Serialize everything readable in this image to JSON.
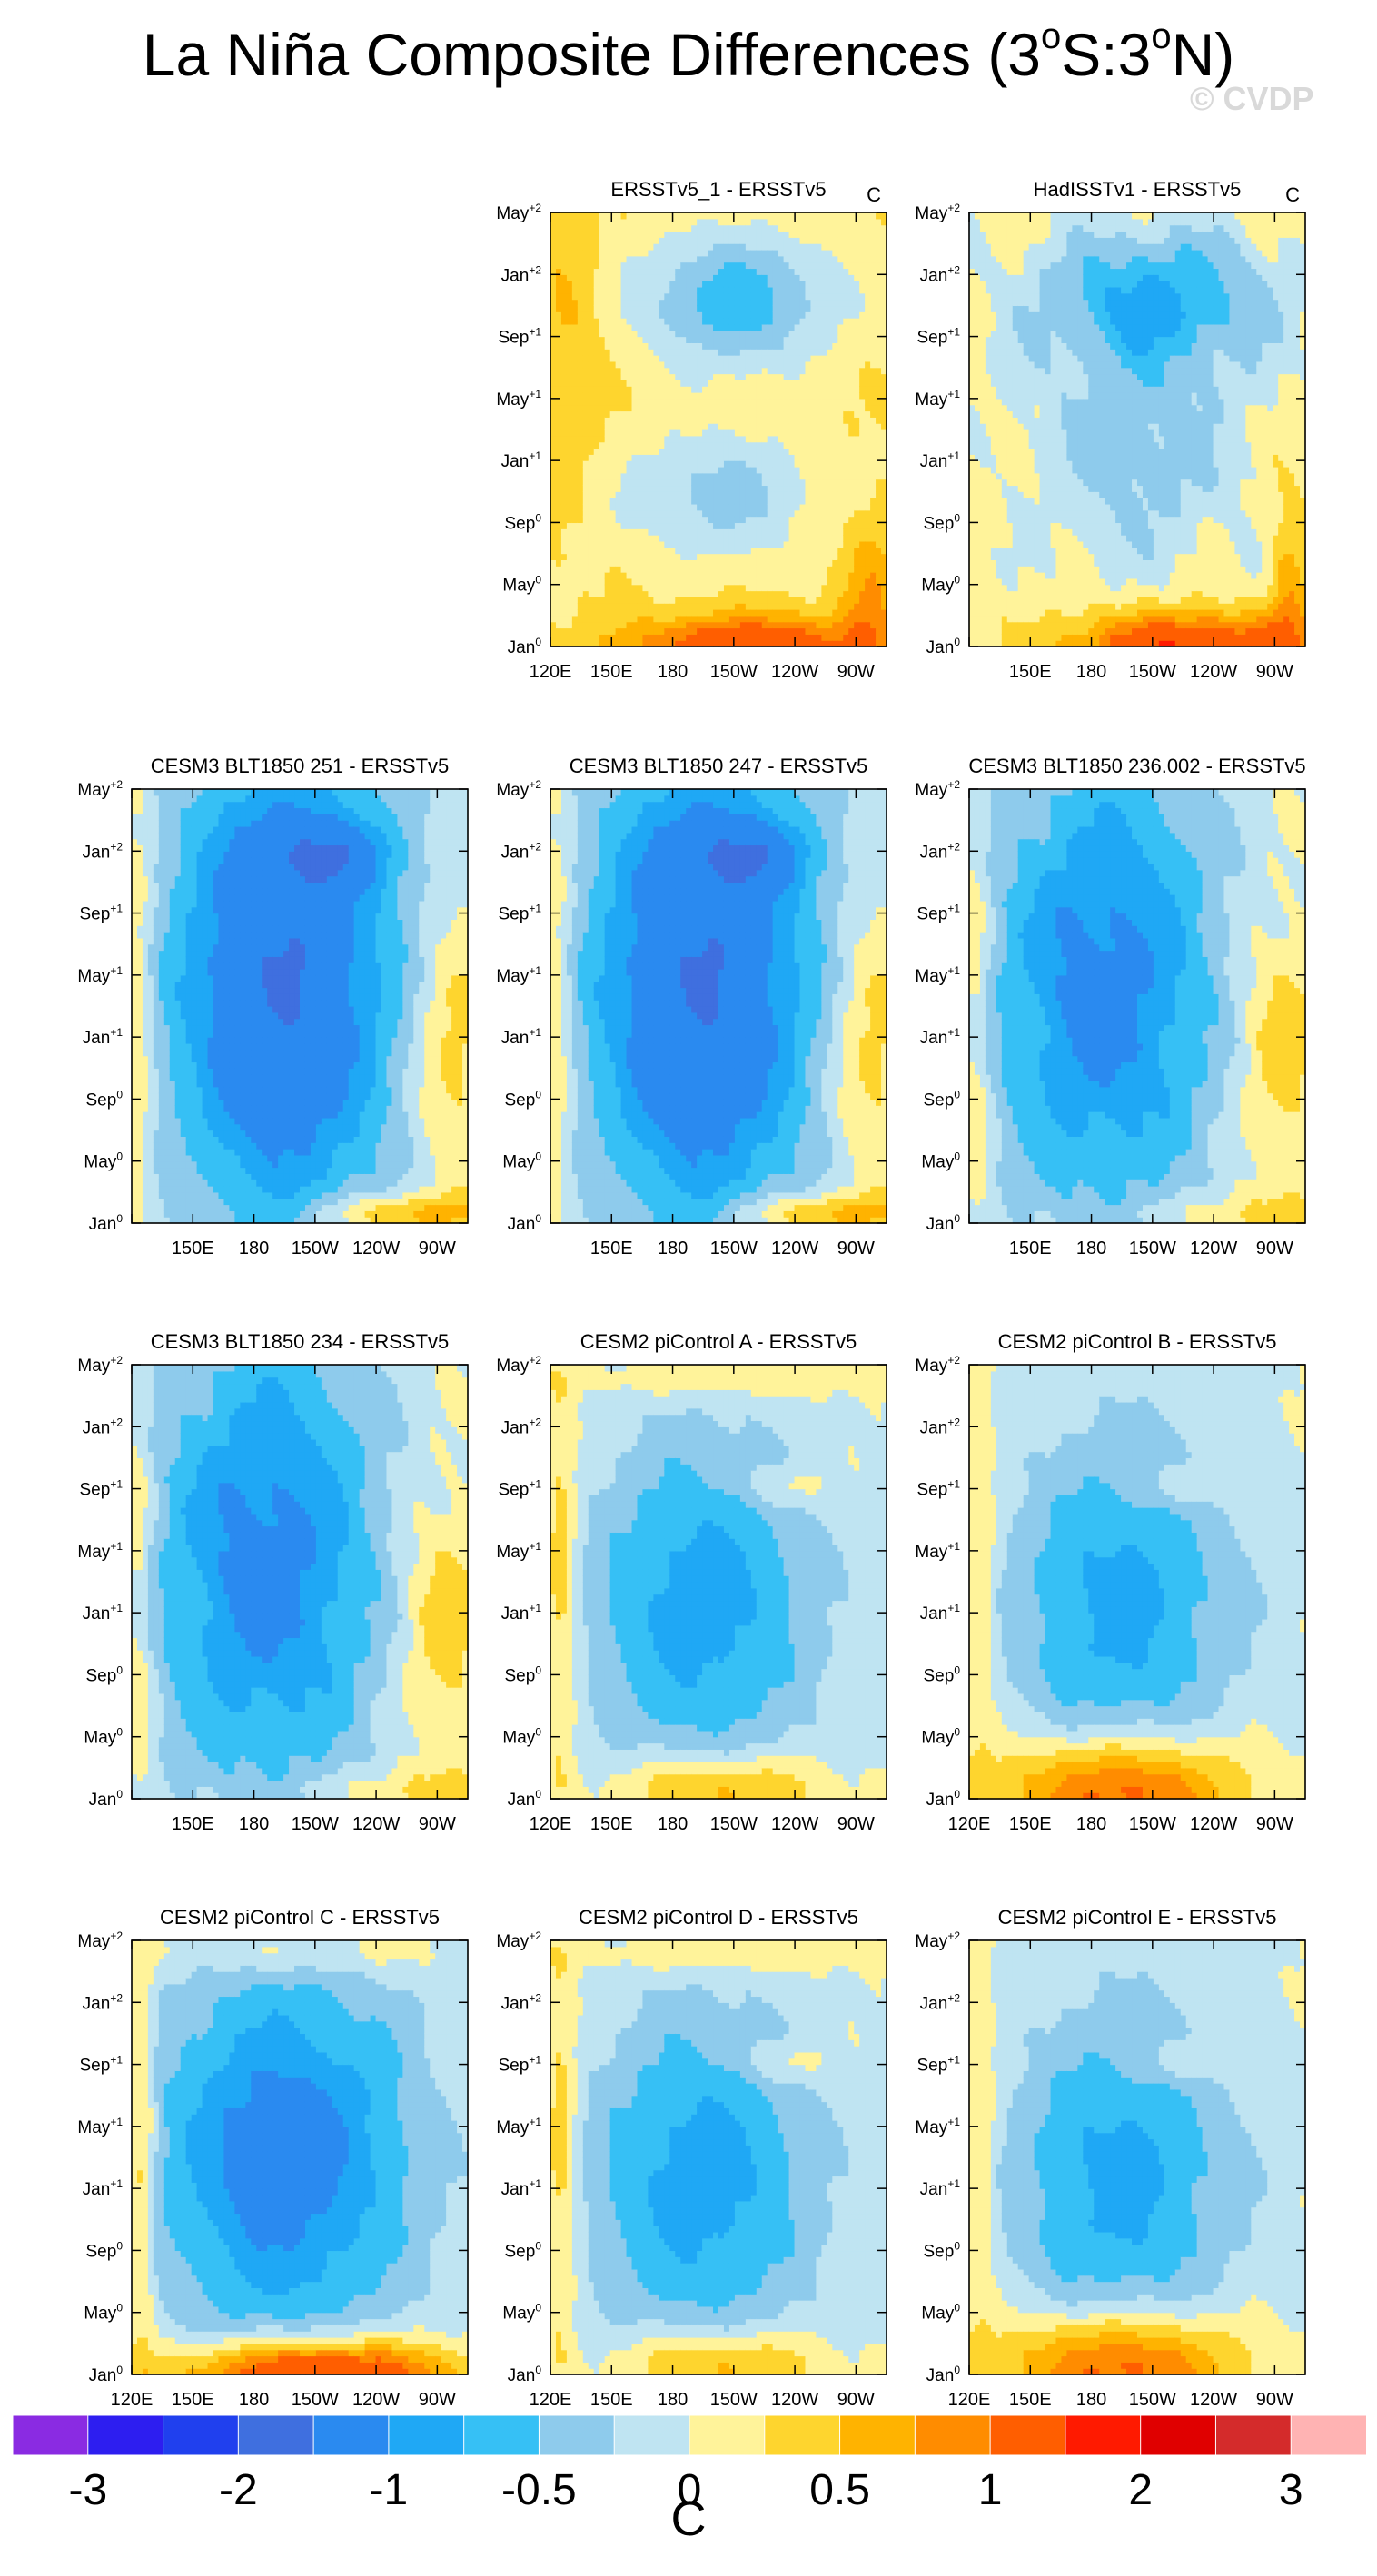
{
  "title": {
    "prefix": "La Niña Composite Differences (3",
    "sup1": "o",
    "mid": "S:3",
    "sup2": "o",
    "suffix": "N)"
  },
  "watermark": "© CVDP",
  "chart_data": {
    "type": "heatmap",
    "description_units": "C",
    "x_ticks": [
      "120E",
      "150E",
      "180",
      "150W",
      "120W",
      "90W"
    ],
    "y_ticks": [
      {
        "base": "Jan",
        "sup": "0"
      },
      {
        "base": "May",
        "sup": "0"
      },
      {
        "base": "Sep",
        "sup": "0"
      },
      {
        "base": "Jan",
        "sup": "+1"
      },
      {
        "base": "May",
        "sup": "+1"
      },
      {
        "base": "Sep",
        "sup": "+1"
      },
      {
        "base": "Jan",
        "sup": "+2"
      },
      {
        "base": "May",
        "sup": "+2"
      }
    ],
    "xlim": [
      "120E",
      "80W"
    ],
    "ylim": [
      "Jan0",
      "May+2"
    ],
    "panels": [
      {
        "title": "ERSSTv5_1 - ERSSTv5",
        "unit": "C",
        "show_x": [
          "120E",
          "150E",
          "180",
          "150W",
          "120W",
          "90W"
        ],
        "pattern": "obs1"
      },
      {
        "title": "HadISSTv1 - ERSSTv5",
        "unit": "C",
        "show_x": [
          "150E",
          "180",
          "150W",
          "120W",
          "90W"
        ],
        "pattern": "obs2"
      },
      {
        "title": "CESM3 BLT1850 251 - ERSSTv5",
        "unit": "",
        "show_x": [
          "150E",
          "180",
          "150W",
          "120W",
          "90W"
        ],
        "pattern": "cold_strong"
      },
      {
        "title": "CESM3 BLT1850 247 - ERSSTv5",
        "unit": "",
        "show_x": [
          "150E",
          "180",
          "150W",
          "120W",
          "90W"
        ],
        "pattern": "cold_strong"
      },
      {
        "title": "CESM3 BLT1850 236.002 - ERSSTv5",
        "unit": "",
        "show_x": [
          "150E",
          "180",
          "150W",
          "120W",
          "90W"
        ],
        "pattern": "cold_mid"
      },
      {
        "title": "CESM3 BLT1850 234 - ERSSTv5",
        "unit": "",
        "show_x": [
          "150E",
          "180",
          "150W",
          "120W",
          "90W"
        ],
        "pattern": "cold_mid"
      },
      {
        "title": "CESM2 piControl A - ERSSTv5",
        "unit": "",
        "show_x": [
          "120E",
          "150E",
          "180",
          "150W",
          "120W",
          "90W"
        ],
        "pattern": "pic_a"
      },
      {
        "title": "CESM2 piControl B - ERSSTv5",
        "unit": "",
        "show_x": [
          "120E",
          "150E",
          "180",
          "150W",
          "120W",
          "90W"
        ],
        "pattern": "pic_b"
      },
      {
        "title": "CESM2 piControl C - ERSSTv5",
        "unit": "",
        "show_x": [
          "120E",
          "150E",
          "180",
          "150W",
          "120W",
          "90W"
        ],
        "pattern": "pic_c"
      },
      {
        "title": "CESM2 piControl D - ERSSTv5",
        "unit": "",
        "show_x": [
          "120E",
          "150E",
          "180",
          "150W",
          "120W",
          "90W"
        ],
        "pattern": "pic_a"
      },
      {
        "title": "CESM2 piControl E - ERSSTv5",
        "unit": "",
        "show_x": [
          "120E",
          "150E",
          "180",
          "150W",
          "120W",
          "90W"
        ],
        "pattern": "pic_b"
      }
    ],
    "colorbar": {
      "levels": [
        -3,
        -2.5,
        -2,
        -1.5,
        -1,
        -0.75,
        -0.5,
        -0.25,
        0,
        0.25,
        0.5,
        0.75,
        1,
        1.5,
        2,
        2.5,
        3
      ],
      "labels": [
        "-3",
        "-2",
        "-1",
        "-0.5",
        "0",
        "0.5",
        "1",
        "2",
        "3"
      ],
      "colors": [
        "#8a2be2",
        "#2d1ef0",
        "#2040ee",
        "#3f6fdf",
        "#2a8af0",
        "#1fa8f5",
        "#36c0f5",
        "#8ecbec",
        "#bfe4f2",
        "#fff39a",
        "#fed52e",
        "#ffb300",
        "#ff8c00",
        "#ff5e00",
        "#ff1a00",
        "#e00000",
        "#d42b2b",
        "#ffb3b3"
      ],
      "unit": "C"
    }
  }
}
